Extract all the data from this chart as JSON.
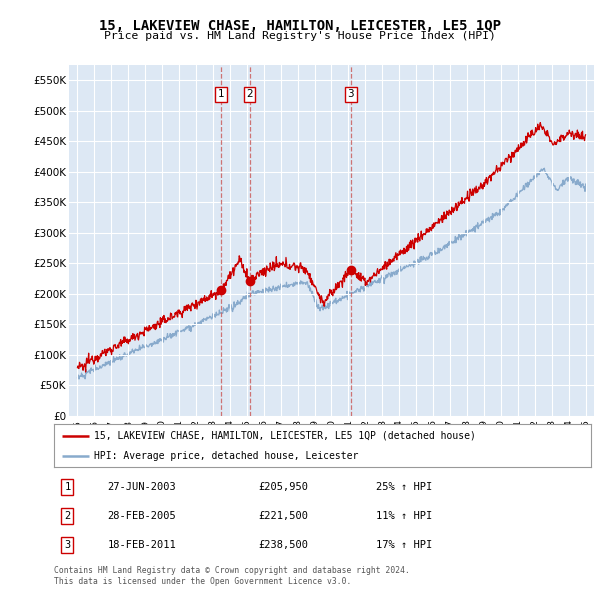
{
  "title": "15, LAKEVIEW CHASE, HAMILTON, LEICESTER, LE5 1QP",
  "subtitle": "Price paid vs. HM Land Registry's House Price Index (HPI)",
  "ylim": [
    0,
    575000
  ],
  "yticks": [
    0,
    50000,
    100000,
    150000,
    200000,
    250000,
    300000,
    350000,
    400000,
    450000,
    500000,
    550000
  ],
  "ytick_labels": [
    "£0",
    "£50K",
    "£100K",
    "£150K",
    "£200K",
    "£250K",
    "£300K",
    "£350K",
    "£400K",
    "£450K",
    "£500K",
    "£550K"
  ],
  "sale_color": "#cc0000",
  "hpi_color": "#88aacc",
  "vline_color": "#cc6666",
  "bg_color": "#dde8f4",
  "legend_entries": [
    "15, LAKEVIEW CHASE, HAMILTON, LEICESTER, LE5 1QP (detached house)",
    "HPI: Average price, detached house, Leicester"
  ],
  "transactions": [
    {
      "num": 1,
      "date": "27-JUN-2003",
      "price": 205950,
      "year": 2003.49,
      "pct": "25%",
      "dir": "↑"
    },
    {
      "num": 2,
      "date": "28-FEB-2005",
      "price": 221500,
      "year": 2005.16,
      "pct": "11%",
      "dir": "↑"
    },
    {
      "num": 3,
      "date": "18-FEB-2011",
      "price": 238500,
      "year": 2011.13,
      "pct": "17%",
      "dir": "↑"
    }
  ],
  "footer_lines": [
    "Contains HM Land Registry data © Crown copyright and database right 2024.",
    "This data is licensed under the Open Government Licence v3.0."
  ],
  "xlim": [
    1994.5,
    2025.5
  ],
  "xtick_start": 1995,
  "xtick_end": 2025
}
